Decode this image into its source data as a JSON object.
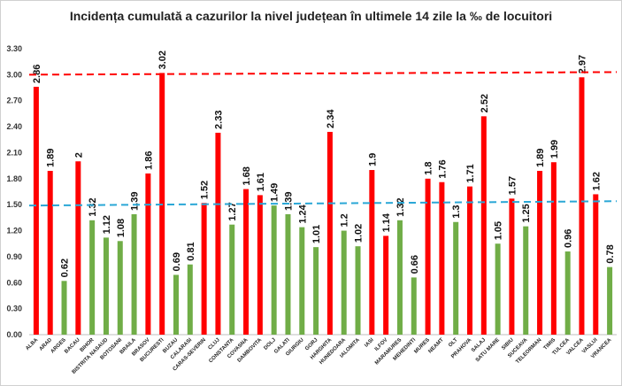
{
  "chart_data": {
    "type": "bar",
    "title": "Incidența cumulată a cazurilor la nivel județean în ultimele 14 zile la ‰ de locuitori",
    "xlabel": "",
    "ylabel": "",
    "ylim": [
      0,
      3.3
    ],
    "yticks": [
      "0.00",
      "0.30",
      "0.60",
      "0.90",
      "1.20",
      "1.50",
      "1.80",
      "2.10",
      "2.40",
      "2.70",
      "3.00",
      "3.30"
    ],
    "grid": false,
    "legend": "none",
    "categories": [
      "ALBA",
      "ARAD",
      "ARGES",
      "BACAU",
      "BIHOR",
      "BISTRITA NASAUD",
      "BOTOSANI",
      "BRAILA",
      "BRASOV",
      "BUCURESTI",
      "BUZAU",
      "CALARASI",
      "CARAS-SEVERIN",
      "CLUJ",
      "CONSTANTA",
      "COVASNA",
      "DAMBOVITA",
      "DOLJ",
      "GALATI",
      "GIURGIU",
      "GORJ",
      "HARGHITA",
      "HUNEDOARA",
      "IALOMITA",
      "IASI",
      "ILFOV",
      "MARAMURES",
      "MEHEDINTI",
      "MURES",
      "NEAMT",
      "OLT",
      "PRAHOVA",
      "SALAJ",
      "SATU MARE",
      "SIBIU",
      "SUCEAVA",
      "TELEORMAN",
      "TIMIS",
      "TULCEA",
      "VALCEA",
      "VASLUI",
      "VRANCEA"
    ],
    "values": [
      2.86,
      1.89,
      0.62,
      2,
      1.32,
      1.12,
      1.08,
      1.39,
      1.86,
      3.02,
      0.69,
      0.81,
      1.52,
      2.33,
      1.27,
      1.68,
      1.61,
      1.49,
      1.39,
      1.24,
      1.01,
      2.34,
      1.2,
      1.02,
      1.9,
      1.14,
      1.32,
      0.66,
      1.8,
      1.76,
      1.3,
      1.71,
      2.52,
      1.05,
      1.57,
      1.25,
      1.89,
      1.99,
      0.96,
      2.97,
      1.62,
      0.78
    ],
    "labels": [
      "2.86",
      "1.89",
      "0.62",
      "2",
      "1.32",
      "1.12",
      "1.08",
      "1.39",
      "1.86",
      "3.02",
      "0.69",
      "0.81",
      "1.52",
      "2.33",
      "1.27",
      "1.68",
      "1.61",
      "1.49",
      "1.39",
      "1.24",
      "1.01",
      "2.34",
      "1.2",
      "1.02",
      "1.9",
      "1.14",
      "1.32",
      "0.66",
      "1.8",
      "1.76",
      "1.3",
      "1.71",
      "2.52",
      "1.05",
      "1.57",
      "1.25",
      "1.89",
      "1.99",
      "0.96",
      "2.97",
      "1.62",
      "0.78"
    ],
    "colors": [
      "red",
      "red",
      "green",
      "red",
      "green",
      "green",
      "green",
      "green",
      "red",
      "red",
      "green",
      "green",
      "red",
      "red",
      "green",
      "red",
      "red",
      "green",
      "green",
      "green",
      "green",
      "red",
      "green",
      "green",
      "red",
      "red",
      "green",
      "green",
      "red",
      "red",
      "green",
      "red",
      "red",
      "green",
      "red",
      "green",
      "red",
      "red",
      "green",
      "red",
      "red",
      "green"
    ],
    "color_map": {
      "red": "#ff0000",
      "green": "#70ad47"
    },
    "threshold_lines": [
      {
        "value": 3.0,
        "end_value": 3.03,
        "color": "#ff0000",
        "style": "dashed"
      },
      {
        "value": 1.49,
        "end_value": 1.54,
        "color": "#2aa7d6",
        "style": "dashed"
      }
    ]
  }
}
